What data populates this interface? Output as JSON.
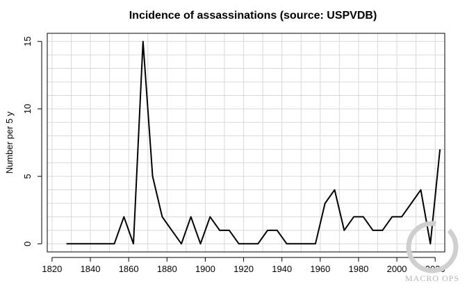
{
  "chart_data": {
    "type": "line",
    "title": "Incidence of assassinations (source: USPVDB)",
    "xlabel": "",
    "ylabel": "Number per 5 y",
    "xlim": [
      1817.5,
      2025
    ],
    "ylim": [
      -0.6,
      15.6
    ],
    "xticks": [
      1820,
      1840,
      1860,
      1880,
      1900,
      1920,
      1940,
      1960,
      1980,
      2000,
      2020
    ],
    "yticks": [
      0,
      5,
      10,
      15
    ],
    "grid": true,
    "x": [
      1827.5,
      1832.5,
      1837.5,
      1842.5,
      1847.5,
      1852.5,
      1857.5,
      1862.5,
      1867.5,
      1872.5,
      1877.5,
      1882.5,
      1887.5,
      1892.5,
      1897.5,
      1902.5,
      1907.5,
      1912.5,
      1917.5,
      1922.5,
      1927.5,
      1932.5,
      1937.5,
      1942.5,
      1947.5,
      1952.5,
      1957.5,
      1962.5,
      1967.5,
      1972.5,
      1977.5,
      1982.5,
      1987.5,
      1992.5,
      1997.5,
      2002.5,
      2007.5,
      2012.5,
      2017.5,
      2022.5
    ],
    "series": [
      {
        "values": [
          0,
          0,
          0,
          0,
          0,
          0,
          2,
          0,
          15,
          5,
          2,
          1,
          0,
          2,
          0,
          2,
          1,
          1,
          0,
          0,
          0,
          1,
          1,
          0,
          0,
          0,
          0,
          3,
          4,
          1,
          2,
          2,
          1,
          1,
          2,
          2,
          3,
          4,
          0,
          7
        ],
        "color": "#000000"
      }
    ]
  },
  "watermark": {
    "text": "MACRO OPS",
    "color": "#b5b5b5"
  }
}
